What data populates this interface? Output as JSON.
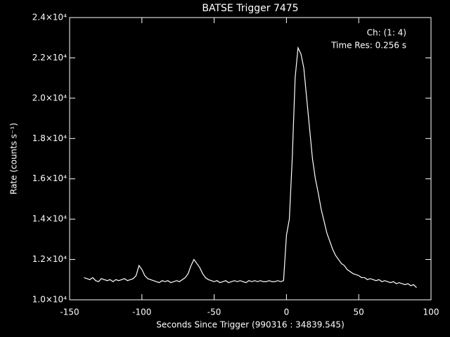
{
  "chart_data": {
    "type": "line",
    "title": "BATSE Trigger 7475",
    "xlabel": "Seconds Since Trigger (990316 : 34839.545)",
    "ylabel": "Rate (counts s⁻¹)",
    "annotations": [
      "Ch: (1: 4)",
      "Time Res: 0.256 s"
    ],
    "xlim": [
      -150,
      100
    ],
    "xticks": [
      -150,
      -100,
      -50,
      0,
      50,
      100
    ],
    "ylim": [
      10000,
      24000
    ],
    "yticks": [
      {
        "value": 10000,
        "label": "1.0×10⁴"
      },
      {
        "value": 12000,
        "label": "1.2×10⁴"
      },
      {
        "value": 14000,
        "label": "1.4×10⁴"
      },
      {
        "value": 16000,
        "label": "1.6×10⁴"
      },
      {
        "value": 18000,
        "label": "1.8×10⁴"
      },
      {
        "value": 20000,
        "label": "2.0×10⁴"
      },
      {
        "value": 22000,
        "label": "2.2×10⁴"
      },
      {
        "value": 24000,
        "label": "2.4×10⁴"
      }
    ],
    "color": "#ffffff",
    "x": [
      -140,
      -138,
      -136,
      -134,
      -132,
      -130,
      -128,
      -126,
      -124,
      -122,
      -120,
      -118,
      -116,
      -114,
      -112,
      -110,
      -108,
      -106,
      -104,
      -102,
      -100,
      -98,
      -96,
      -94,
      -92,
      -90,
      -88,
      -86,
      -84,
      -82,
      -80,
      -78,
      -76,
      -74,
      -72,
      -70,
      -68,
      -66,
      -64,
      -62,
      -60,
      -58,
      -56,
      -54,
      -52,
      -50,
      -48,
      -46,
      -44,
      -42,
      -40,
      -38,
      -36,
      -34,
      -32,
      -30,
      -28,
      -26,
      -24,
      -22,
      -20,
      -18,
      -16,
      -14,
      -12,
      -10,
      -8,
      -6,
      -4,
      -2,
      0,
      2,
      4,
      6,
      8,
      10,
      12,
      14,
      16,
      18,
      20,
      22,
      24,
      26,
      28,
      30,
      32,
      34,
      36,
      38,
      40,
      42,
      44,
      46,
      48,
      50,
      52,
      54,
      56,
      58,
      60,
      62,
      64,
      66,
      68,
      70,
      72,
      74,
      76,
      78,
      80,
      82,
      84,
      86,
      88,
      90
    ],
    "values": [
      11100,
      11050,
      11000,
      11100,
      10950,
      10900,
      11050,
      11000,
      10950,
      11000,
      10900,
      11000,
      10950,
      11000,
      11050,
      10950,
      11000,
      11050,
      11200,
      11700,
      11500,
      11200,
      11050,
      11000,
      10950,
      10900,
      10850,
      10950,
      10900,
      10950,
      10850,
      10900,
      10950,
      10900,
      11000,
      11100,
      11300,
      11700,
      12000,
      11800,
      11600,
      11300,
      11100,
      11000,
      10950,
      10900,
      10950,
      10850,
      10900,
      10950,
      10850,
      10900,
      10950,
      10900,
      10950,
      10900,
      10850,
      10950,
      10900,
      10950,
      10900,
      10950,
      10900,
      10900,
      10950,
      10900,
      10900,
      10950,
      10900,
      10950,
      13200,
      14000,
      17000,
      21000,
      22500,
      22200,
      21500,
      20000,
      18500,
      17000,
      16000,
      15300,
      14500,
      13900,
      13300,
      12900,
      12500,
      12200,
      12000,
      11800,
      11700,
      11500,
      11400,
      11300,
      11250,
      11200,
      11100,
      11100,
      11000,
      11050,
      11000,
      10950,
      11000,
      10900,
      10950,
      10900,
      10850,
      10900,
      10800,
      10850,
      10800,
      10750,
      10800,
      10700,
      10750,
      10600
    ]
  }
}
